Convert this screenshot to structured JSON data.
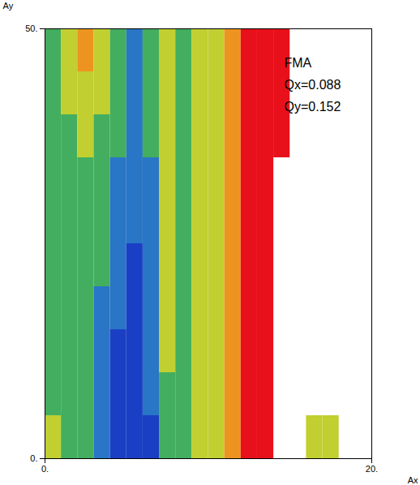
{
  "chart_data": {
    "type": "heatmap",
    "annotations": [
      "FMA",
      "Qx=0.088",
      "Qy=0.152"
    ],
    "x_label": "Ax",
    "y_label": "Ay",
    "xlim": [
      0,
      20
    ],
    "ylim": [
      0,
      50
    ],
    "xticks": [
      {
        "value": 0,
        "label": "0."
      },
      {
        "value": 20,
        "label": "20."
      }
    ],
    "yticks": [
      {
        "value": 0,
        "label": "0."
      },
      {
        "value": 50,
        "label": "50."
      }
    ],
    "x_edges": [
      0,
      1,
      2,
      3,
      4,
      5,
      6,
      7,
      8,
      9,
      10,
      11,
      12,
      13,
      14,
      15,
      16,
      17,
      18,
      19,
      20
    ],
    "y_edges": [
      0,
      5,
      10,
      15,
      20,
      25,
      30,
      35,
      40,
      45,
      50
    ],
    "color_range": [
      0,
      5
    ],
    "cells": [
      [
        3,
        2,
        2,
        1,
        0,
        0,
        0,
        2,
        2,
        3,
        3,
        4,
        5,
        5,
        null,
        null,
        3,
        3,
        null,
        null
      ],
      [
        2,
        2,
        2,
        1,
        0,
        0,
        1,
        2,
        2,
        3,
        3,
        4,
        5,
        5,
        null,
        null,
        null,
        null,
        null,
        null
      ],
      [
        2,
        2,
        2,
        1,
        0,
        0,
        1,
        3,
        2,
        3,
        3,
        4,
        5,
        5,
        null,
        null,
        null,
        null,
        null,
        null
      ],
      [
        2,
        2,
        2,
        1,
        1,
        0,
        1,
        3,
        2,
        3,
        3,
        4,
        5,
        5,
        null,
        null,
        null,
        null,
        null,
        null
      ],
      [
        2,
        2,
        2,
        2,
        1,
        0,
        1,
        3,
        2,
        3,
        3,
        4,
        5,
        5,
        null,
        null,
        null,
        null,
        null,
        null
      ],
      [
        2,
        2,
        2,
        2,
        1,
        1,
        1,
        3,
        2,
        3,
        3,
        4,
        5,
        5,
        null,
        null,
        null,
        null,
        null,
        null
      ],
      [
        2,
        2,
        2,
        2,
        1,
        1,
        1,
        3,
        2,
        3,
        3,
        4,
        5,
        5,
        null,
        null,
        null,
        null,
        null,
        null
      ],
      [
        2,
        2,
        3,
        2,
        2,
        1,
        2,
        3,
        2,
        3,
        3,
        4,
        5,
        5,
        5,
        null,
        null,
        null,
        null,
        null
      ],
      [
        2,
        3,
        3,
        3,
        2,
        1,
        2,
        3,
        2,
        3,
        3,
        4,
        5,
        5,
        5,
        null,
        null,
        null,
        null,
        null
      ],
      [
        2,
        3,
        4,
        3,
        2,
        1,
        2,
        3,
        2,
        3,
        3,
        4,
        5,
        5,
        5,
        null,
        null,
        null,
        null,
        null
      ]
    ]
  }
}
